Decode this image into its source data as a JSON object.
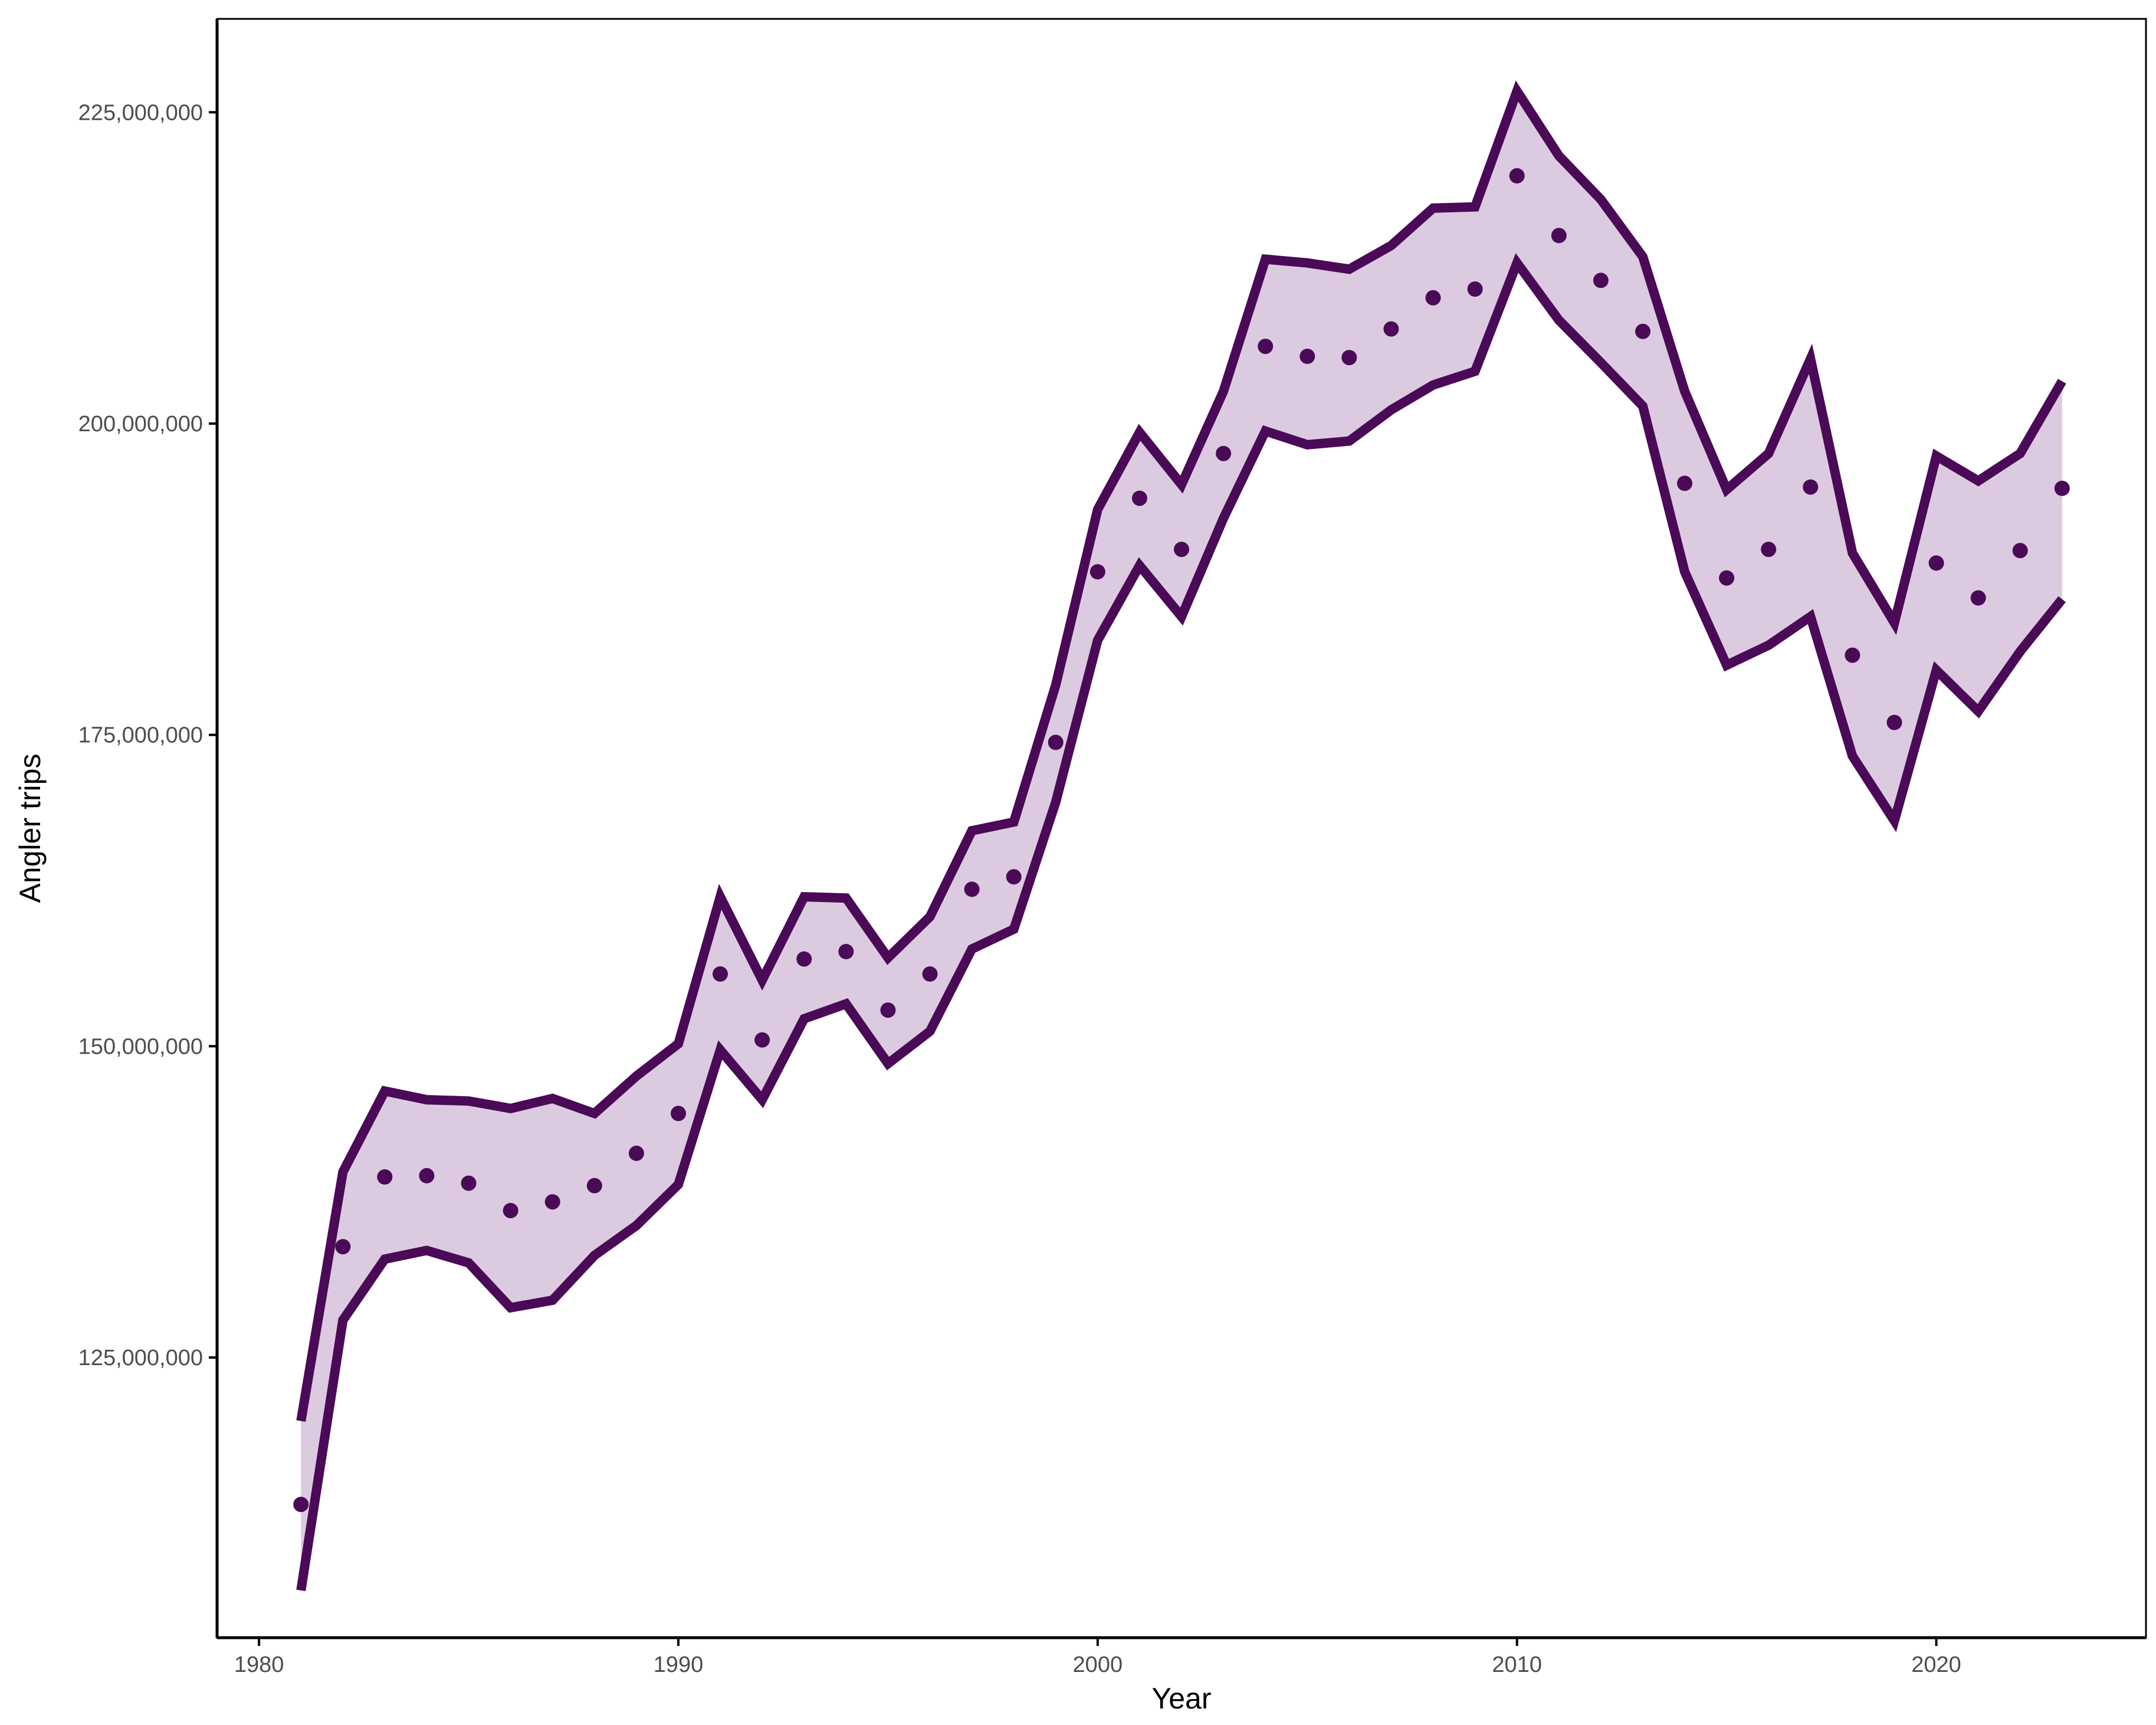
{
  "chart_data": {
    "type": "line",
    "xlabel": "Year",
    "ylabel": "Angler trips",
    "xlim": [
      1979,
      2025
    ],
    "ylim": [
      102500000,
      232500000
    ],
    "x_ticks": [
      1980,
      1990,
      2000,
      2010,
      2020
    ],
    "x_tick_labels": [
      "1980",
      "1990",
      "2000",
      "2010",
      "2020"
    ],
    "y_ticks": [
      125000000,
      150000000,
      175000000,
      200000000,
      225000000
    ],
    "y_tick_labels": [
      "125,000,000",
      "150,000,000",
      "175,000,000",
      "200,000,000",
      "225,000,000"
    ],
    "grid": false,
    "colors": {
      "line": "#4a0a57",
      "band_fill": "#dccbe0",
      "point": "#4a0a57",
      "axis": "#000000"
    },
    "x": [
      1981,
      1982,
      1983,
      1984,
      1985,
      1986,
      1987,
      1988,
      1989,
      1990,
      1991,
      1992,
      1993,
      1994,
      1995,
      1996,
      1997,
      1998,
      1999,
      2000,
      2001,
      2002,
      2003,
      2004,
      2005,
      2006,
      2007,
      2008,
      2009,
      2010,
      2011,
      2012,
      2013,
      2014,
      2015,
      2016,
      2017,
      2018,
      2019,
      2020,
      2021,
      2022,
      2023
    ],
    "series": [
      {
        "values": [
          113200000,
          133900000,
          139500000,
          139600000,
          139000000,
          136800000,
          137500000,
          138800000,
          141400000,
          144600000,
          155800000,
          150500000,
          157000000,
          157600000,
          152900000,
          155800000,
          162600000,
          163600000,
          174400000,
          188100000,
          194000000,
          189900000,
          197600000,
          206200000,
          205400000,
          205300000,
          207600000,
          210100000,
          210800000,
          219900000,
          215100000,
          211500000,
          207400000,
          195200000,
          187600000,
          189900000,
          194900000,
          181400000,
          176000000,
          188800000,
          186000000,
          189800000,
          194800000
        ]
      },
      {
        "values": [
          119900000,
          139900000,
          146400000,
          145700000,
          145600000,
          145000000,
          145800000,
          144600000,
          147600000,
          150200000,
          162000000,
          155300000,
          162000000,
          161900000,
          157100000,
          160400000,
          167300000,
          168000000,
          179000000,
          193100000,
          199300000,
          195100000,
          202600000,
          213200000,
          212900000,
          212400000,
          214300000,
          217300000,
          217400000,
          226700000,
          221500000,
          218000000,
          213400000,
          202600000,
          194700000,
          197600000,
          205200000,
          189600000,
          184000000,
          197400000,
          195400000,
          197600000,
          203400000
        ]
      },
      {
        "values": [
          106300000,
          128000000,
          132900000,
          133600000,
          132600000,
          129000000,
          129600000,
          133200000,
          135600000,
          138900000,
          149700000,
          145700000,
          152200000,
          153400000,
          148600000,
          151200000,
          157800000,
          159400000,
          169600000,
          182600000,
          188600000,
          184500000,
          192400000,
          199400000,
          198300000,
          198600000,
          201100000,
          203100000,
          204200000,
          212900000,
          208300000,
          204900000,
          201400000,
          188100000,
          180600000,
          182200000,
          184500000,
          173300000,
          168100000,
          180200000,
          176900000,
          181700000,
          185900000
        ]
      }
    ]
  }
}
